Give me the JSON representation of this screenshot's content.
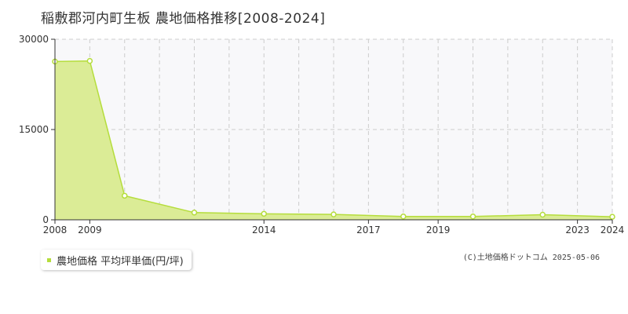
{
  "title": "稲敷郡河内町生板 農地価格推移[2008-2024]",
  "legend": {
    "label": "農地価格 平均坪単価(円/坪)",
    "color": "#b5dd3c"
  },
  "credit": "(C)土地価格ドットコム 2025-05-06",
  "colors": {
    "fill": "#dbec96",
    "line": "#b5dd3c",
    "grid": "#cccccc",
    "plot_bg": "#f8f8fa"
  },
  "chart_data": {
    "type": "area",
    "title": "稲敷郡河内町生板 農地価格推移[2008-2024]",
    "xlabel": "",
    "ylabel": "",
    "xlim": [
      2008,
      2024
    ],
    "ylim": [
      0,
      30000
    ],
    "x_ticks": [
      2008,
      2009,
      2014,
      2017,
      2019,
      2023,
      2024
    ],
    "y_ticks": [
      0,
      15000,
      30000
    ],
    "x_gridlines": [
      2009,
      2010,
      2011,
      2012,
      2013,
      2014,
      2015,
      2016,
      2017,
      2018,
      2019,
      2020,
      2021,
      2022,
      2023,
      2024
    ],
    "grid": true,
    "legend_position": "bottom-left",
    "series": [
      {
        "name": "農地価格 平均坪単価(円/坪)",
        "x": [
          2008,
          2009,
          2010,
          2012,
          2014,
          2016,
          2018,
          2020,
          2022,
          2024
        ],
        "y": [
          26300,
          26400,
          4000,
          1200,
          1000,
          900,
          550,
          550,
          850,
          500
        ]
      }
    ]
  }
}
